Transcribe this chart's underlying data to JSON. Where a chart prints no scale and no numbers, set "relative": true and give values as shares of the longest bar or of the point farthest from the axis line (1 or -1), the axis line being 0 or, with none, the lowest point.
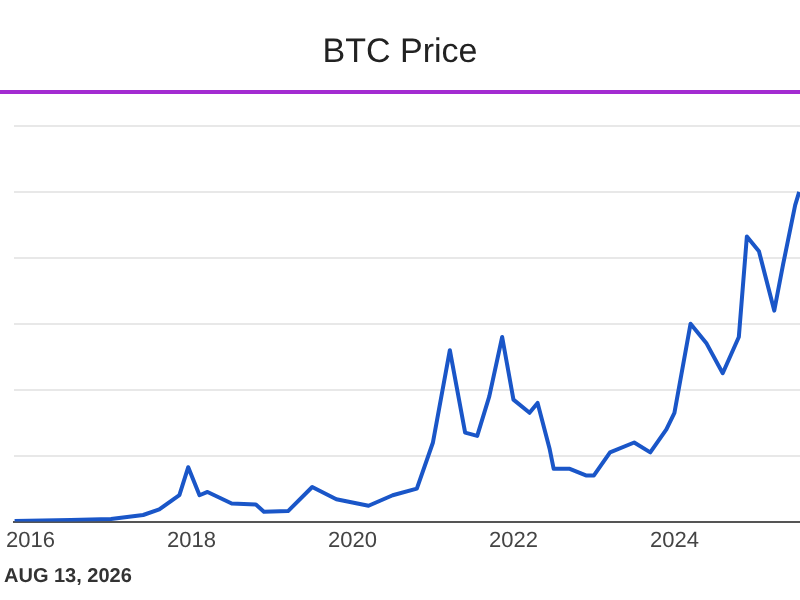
{
  "chart_data": {
    "type": "line",
    "title": "BTC Price",
    "relative": true,
    "grid": "y",
    "legend": false,
    "marker": "none",
    "line_style": "solid",
    "x": [
      2015.8,
      2016.5,
      2017.0,
      2017.4,
      2017.6,
      2017.85,
      2017.96,
      2018.1,
      2018.2,
      2018.5,
      2018.8,
      2018.9,
      2019.2,
      2019.5,
      2019.8,
      2020.2,
      2020.5,
      2020.8,
      2021.0,
      2021.21,
      2021.4,
      2021.55,
      2021.7,
      2021.86,
      2022.0,
      2022.2,
      2022.3,
      2022.45,
      2022.5,
      2022.7,
      2022.9,
      2023.0,
      2023.2,
      2023.5,
      2023.7,
      2023.9,
      2024.0,
      2024.2,
      2024.4,
      2024.6,
      2024.8,
      2024.9,
      2025.05,
      2025.24,
      2025.35,
      2025.5,
      2025.55
    ],
    "series": [
      {
        "color": "#1a56c8",
        "values": [
          0.002,
          0.005,
          0.008,
          0.02,
          0.037,
          0.08,
          0.165,
          0.08,
          0.09,
          0.055,
          0.052,
          0.03,
          0.032,
          0.105,
          0.068,
          0.048,
          0.08,
          0.1,
          0.24,
          0.52,
          0.27,
          0.26,
          0.38,
          0.56,
          0.37,
          0.33,
          0.36,
          0.22,
          0.16,
          0.16,
          0.14,
          0.14,
          0.21,
          0.24,
          0.21,
          0.28,
          0.33,
          0.6,
          0.54,
          0.45,
          0.56,
          0.865,
          0.82,
          0.64,
          0.78,
          0.96,
          1.0
        ]
      }
    ],
    "xlim": [
      2015.8,
      2025.56
    ],
    "xticks": [
      2016,
      2018,
      2020,
      2022,
      2024
    ],
    "annotations": [
      "AUG 13, 2026"
    ]
  }
}
